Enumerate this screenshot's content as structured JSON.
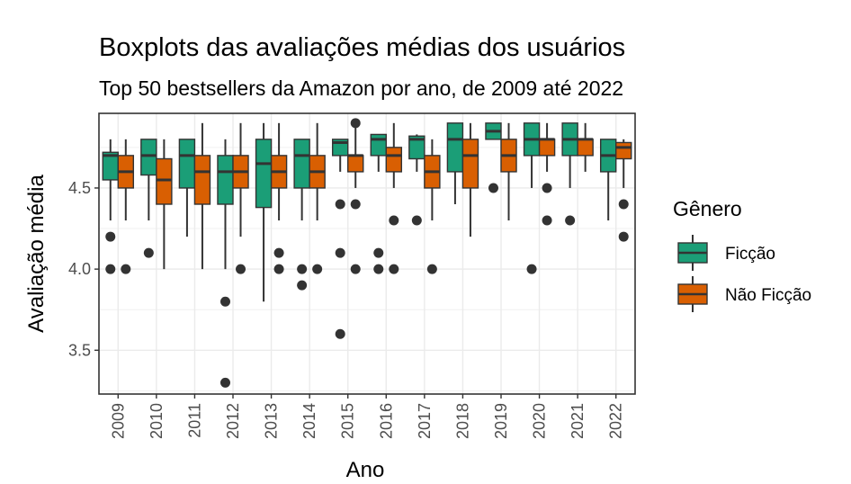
{
  "chart_data": {
    "type": "boxplot",
    "title": "Boxplots das avaliações médias dos usuários",
    "subtitle": "Top 50 bestsellers da Amazon por ano, de 2009 até 2022",
    "xlabel": "Ano",
    "ylabel": "Avaliação média",
    "ylim": [
      3.23,
      4.96
    ],
    "yticks": [
      "3.5",
      "4.0",
      "4.5"
    ],
    "grid": true,
    "legend": {
      "title": "Gênero",
      "position": "right",
      "entries": [
        {
          "name": "Ficção",
          "color": "#1b9e77"
        },
        {
          "name": "Não Ficção",
          "color": "#d95f02"
        }
      ]
    },
    "categories": [
      "2009",
      "2010",
      "2011",
      "2012",
      "2013",
      "2014",
      "2015",
      "2016",
      "2017",
      "2018",
      "2019",
      "2020",
      "2021",
      "2022"
    ],
    "series": [
      {
        "name": "Ficção",
        "color": "#1b9e77",
        "boxes": [
          {
            "min": 4.3,
            "q1": 4.55,
            "median": 4.7,
            "q3": 4.72,
            "max": 4.8,
            "outliers": [
              4.2,
              4.0
            ]
          },
          {
            "min": 4.3,
            "q1": 4.58,
            "median": 4.7,
            "q3": 4.8,
            "max": 4.8,
            "outliers": [
              4.1
            ]
          },
          {
            "min": 4.2,
            "q1": 4.5,
            "median": 4.7,
            "q3": 4.8,
            "max": 4.8,
            "outliers": []
          },
          {
            "min": 4.0,
            "q1": 4.4,
            "median": 4.6,
            "q3": 4.7,
            "max": 4.8,
            "outliers": [
              3.8,
              3.3
            ]
          },
          {
            "min": 3.8,
            "q1": 4.38,
            "median": 4.65,
            "q3": 4.8,
            "max": 4.9,
            "outliers": []
          },
          {
            "min": 4.3,
            "q1": 4.5,
            "median": 4.7,
            "q3": 4.8,
            "max": 4.8,
            "outliers": [
              4.0,
              3.9
            ]
          },
          {
            "min": 4.6,
            "q1": 4.7,
            "median": 4.78,
            "q3": 4.8,
            "max": 4.8,
            "outliers": [
              4.4,
              4.1,
              3.6
            ]
          },
          {
            "min": 4.6,
            "q1": 4.7,
            "median": 4.8,
            "q3": 4.83,
            "max": 4.83,
            "outliers": [
              4.1,
              4.0
            ]
          },
          {
            "min": 4.6,
            "q1": 4.68,
            "median": 4.8,
            "q3": 4.82,
            "max": 4.83,
            "outliers": [
              4.3
            ]
          },
          {
            "min": 4.4,
            "q1": 4.6,
            "median": 4.8,
            "q3": 4.9,
            "max": 4.9,
            "outliers": []
          },
          {
            "min": 4.8,
            "q1": 4.8,
            "median": 4.85,
            "q3": 4.9,
            "max": 4.9,
            "outliers": [
              4.5
            ]
          },
          {
            "min": 4.5,
            "q1": 4.7,
            "median": 4.8,
            "q3": 4.9,
            "max": 4.9,
            "outliers": [
              4.0
            ]
          },
          {
            "min": 4.5,
            "q1": 4.7,
            "median": 4.8,
            "q3": 4.9,
            "max": 4.9,
            "outliers": [
              4.3
            ]
          },
          {
            "min": 4.3,
            "q1": 4.6,
            "median": 4.7,
            "q3": 4.8,
            "max": 4.8,
            "outliers": []
          }
        ]
      },
      {
        "name": "Não Ficção",
        "color": "#d95f02",
        "boxes": [
          {
            "min": 4.3,
            "q1": 4.5,
            "median": 4.6,
            "q3": 4.7,
            "max": 4.8,
            "outliers": [
              4.0
            ]
          },
          {
            "min": 4.0,
            "q1": 4.4,
            "median": 4.55,
            "q3": 4.68,
            "max": 4.8,
            "outliers": []
          },
          {
            "min": 4.0,
            "q1": 4.4,
            "median": 4.6,
            "q3": 4.7,
            "max": 4.9,
            "outliers": []
          },
          {
            "min": 4.2,
            "q1": 4.5,
            "median": 4.6,
            "q3": 4.7,
            "max": 4.9,
            "outliers": [
              4.0
            ]
          },
          {
            "min": 4.3,
            "q1": 4.5,
            "median": 4.6,
            "q3": 4.7,
            "max": 4.9,
            "outliers": [
              4.1,
              4.0
            ]
          },
          {
            "min": 4.3,
            "q1": 4.5,
            "median": 4.6,
            "q3": 4.7,
            "max": 4.9,
            "outliers": [
              4.0
            ]
          },
          {
            "min": 4.5,
            "q1": 4.6,
            "median": 4.7,
            "q3": 4.7,
            "max": 4.9,
            "outliers": [
              4.9,
              4.4,
              4.0
            ]
          },
          {
            "min": 4.5,
            "q1": 4.6,
            "median": 4.7,
            "q3": 4.75,
            "max": 4.9,
            "outliers": [
              4.3,
              4.0
            ]
          },
          {
            "min": 4.3,
            "q1": 4.5,
            "median": 4.6,
            "q3": 4.7,
            "max": 4.8,
            "outliers": [
              4.0
            ]
          },
          {
            "min": 4.2,
            "q1": 4.5,
            "median": 4.7,
            "q3": 4.8,
            "max": 4.9,
            "outliers": []
          },
          {
            "min": 4.3,
            "q1": 4.6,
            "median": 4.7,
            "q3": 4.8,
            "max": 4.9,
            "outliers": []
          },
          {
            "min": 4.6,
            "q1": 4.7,
            "median": 4.8,
            "q3": 4.8,
            "max": 4.9,
            "outliers": [
              4.5,
              4.3
            ]
          },
          {
            "min": 4.6,
            "q1": 4.7,
            "median": 4.8,
            "q3": 4.8,
            "max": 4.9,
            "outliers": []
          },
          {
            "min": 4.5,
            "q1": 4.68,
            "median": 4.75,
            "q3": 4.78,
            "max": 4.8,
            "outliers": [
              4.4,
              4.2
            ]
          }
        ]
      }
    ]
  }
}
